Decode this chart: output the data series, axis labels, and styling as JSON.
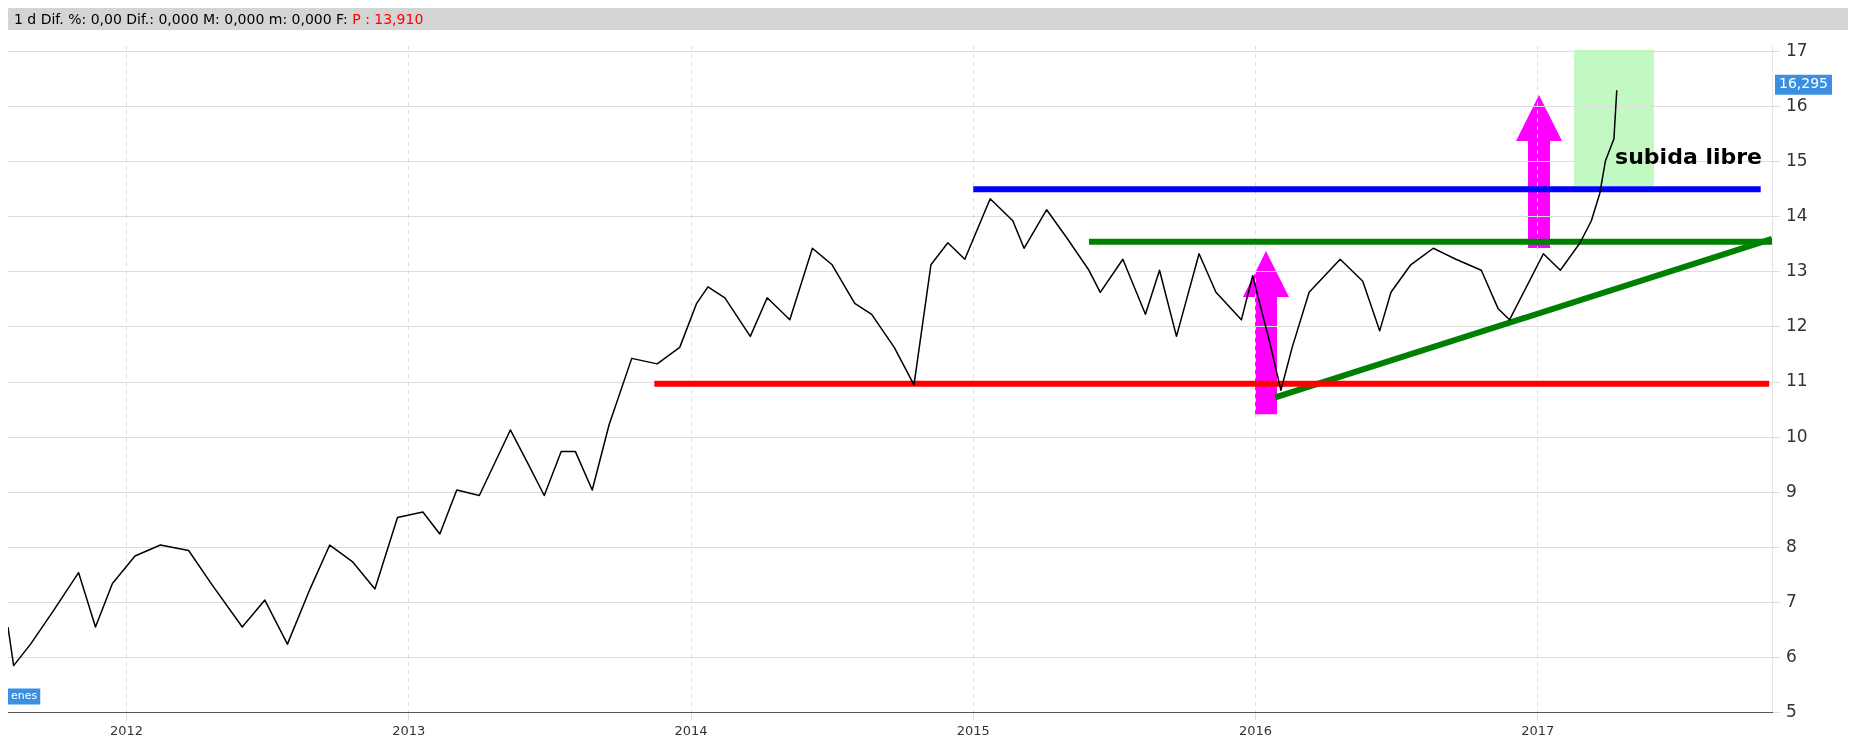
{
  "chart_data": {
    "type": "line",
    "title": "1 d  Dif. %: 0,00  Dif.: 0,000  M: 0,000  m: 0,000  F:",
    "subtitle": "P : 13,910",
    "xlim": [
      2011.58,
      2017.83
    ],
    "xticks": [
      2012,
      2013,
      2014,
      2015,
      2016,
      2017
    ],
    "ylim": [
      5,
      17.1
    ],
    "yticks": [
      5,
      6,
      7,
      8,
      9,
      10,
      11,
      12,
      13,
      14,
      15,
      16,
      17
    ],
    "grid": true,
    "legend": false,
    "marker": "none",
    "series": [
      {
        "color": "#000000",
        "x": [
          2011.58,
          2011.6,
          2011.66,
          2011.74,
          2011.83,
          2011.89,
          2011.95,
          2012.03,
          2012.12,
          2012.22,
          2012.3,
          2012.41,
          2012.49,
          2012.57,
          2012.65,
          2012.72,
          2012.8,
          2012.88,
          2012.96,
          2013.05,
          2013.11,
          2013.17,
          2013.25,
          2013.36,
          2013.42,
          2013.48,
          2013.54,
          2013.59,
          2013.65,
          2013.71,
          2013.79,
          2013.88,
          2013.96,
          2014.02,
          2014.06,
          2014.12,
          2014.21,
          2014.27,
          2014.35,
          2014.43,
          2014.5,
          2014.58,
          2014.64,
          2014.72,
          2014.79,
          2014.85,
          2014.91,
          2014.97,
          2015.06,
          2015.14,
          2015.18,
          2015.26,
          2015.33,
          2015.41,
          2015.45,
          2015.53,
          2015.61,
          2015.66,
          2015.72,
          2015.8,
          2015.86,
          2015.95,
          2015.99,
          2016.05,
          2016.09,
          2016.13,
          2016.19,
          2016.3,
          2016.38,
          2016.44,
          2016.48,
          2016.55,
          2016.63,
          2016.71,
          2016.8,
          2016.86,
          2016.9,
          2016.96,
          2017.02,
          2017.08,
          2017.15,
          2017.19,
          2017.22,
          2017.24,
          2017.27,
          2017.28
        ],
        "values": [
          6.55,
          5.85,
          6.24,
          6.84,
          7.54,
          6.55,
          7.34,
          7.84,
          8.04,
          7.94,
          7.34,
          6.55,
          7.04,
          6.24,
          7.24,
          8.04,
          7.74,
          7.24,
          8.54,
          8.64,
          8.24,
          9.04,
          8.94,
          10.13,
          9.54,
          8.94,
          9.74,
          9.74,
          9.04,
          10.23,
          11.43,
          11.33,
          11.63,
          12.43,
          12.73,
          12.53,
          11.83,
          12.53,
          12.13,
          13.43,
          13.13,
          12.43,
          12.23,
          11.63,
          10.95,
          13.13,
          13.53,
          13.23,
          14.33,
          13.93,
          13.43,
          14.13,
          13.63,
          13.03,
          12.63,
          13.23,
          12.23,
          13.03,
          11.83,
          13.33,
          12.63,
          12.13,
          12.93,
          11.73,
          10.85,
          11.63,
          12.63,
          13.23,
          12.83,
          11.93,
          12.63,
          13.13,
          13.43,
          13.23,
          13.03,
          12.33,
          12.13,
          12.73,
          13.33,
          13.03,
          13.53,
          13.93,
          14.43,
          15.02,
          15.42,
          16.3
        ]
      },
      {
        "color": "#0000ff",
        "x": [
          2015.0,
          2017.79
        ],
        "values": [
          14.5,
          14.5
        ]
      },
      {
        "color": "#ff0000",
        "x": [
          2013.87,
          2017.82
        ],
        "values": [
          10.97,
          10.97
        ]
      },
      {
        "color": "#008000",
        "x": [
          2015.41,
          2017.83
        ],
        "values": [
          13.55,
          13.55
        ]
      },
      {
        "color": "#008000",
        "x": [
          2016.07,
          2017.83
        ],
        "values": [
          10.72,
          13.6
        ]
      }
    ],
    "annotations": [
      "16,295",
      "subida libre",
      "enes"
    ]
  }
}
